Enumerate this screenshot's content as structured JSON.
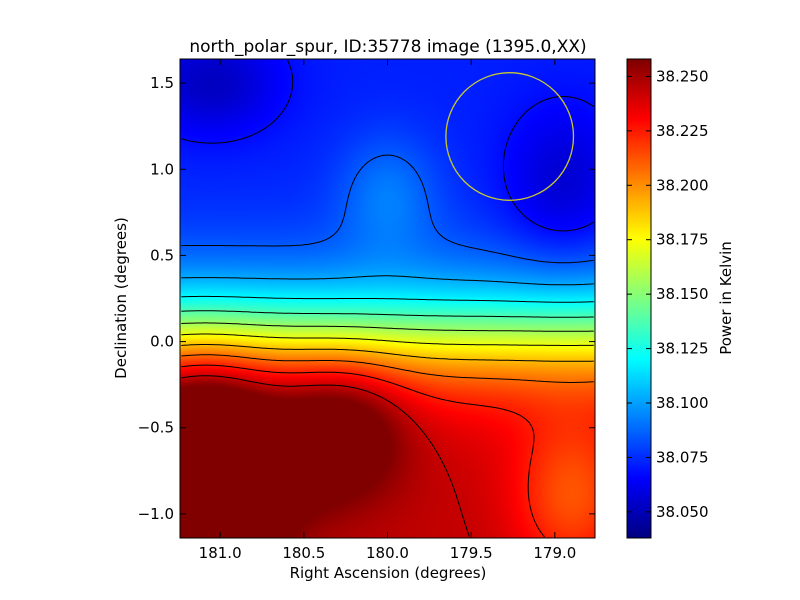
{
  "chart_data": {
    "type": "heatmap",
    "title": "north_polar_spur, ID:35778 image (1395.0,XX)",
    "xlabel": "Right Ascension (degrees)",
    "ylabel": "Declination (degrees)",
    "xlim": [
      181.24,
      178.76
    ],
    "ylim": [
      -1.14,
      1.64
    ],
    "x_ticks": [
      181.0,
      180.5,
      180.0,
      179.5,
      179.0
    ],
    "x_tick_labels": [
      "181.0",
      "180.5",
      "180.0",
      "179.5",
      "179.0"
    ],
    "y_ticks": [
      1.5,
      1.0,
      0.5,
      0.0,
      -0.5,
      -1.0
    ],
    "y_tick_labels": [
      "1.5",
      "1.0",
      "0.5",
      "0.0",
      "−0.5",
      "−1.0"
    ],
    "colorbar": {
      "label": "Power in Kelvin",
      "range": [
        38.038,
        38.258
      ],
      "ticks": [
        38.05,
        38.075,
        38.1,
        38.125,
        38.15,
        38.175,
        38.2,
        38.225,
        38.25
      ],
      "tick_labels": [
        "38.050",
        "38.075",
        "38.100",
        "38.125",
        "38.150",
        "38.175",
        "38.200",
        "38.225",
        "38.250"
      ]
    },
    "colormap": "jet",
    "features": [
      {
        "type": "maximum",
        "ra": 181.1,
        "dec": -0.72,
        "value": 38.255
      },
      {
        "type": "minimum",
        "ra": 181.05,
        "dec": 1.5,
        "value": 38.04
      },
      {
        "type": "minimum",
        "ra": 179.0,
        "dec": 0.9,
        "value": 38.045
      },
      {
        "type": "ridge",
        "ra": 180.0,
        "dec": 0.86,
        "value": 38.075
      }
    ],
    "annotation_circle": {
      "ra": 179.27,
      "dec": 1.19,
      "radius_deg": 0.37,
      "color": "#c8c832"
    },
    "contours": true
  }
}
